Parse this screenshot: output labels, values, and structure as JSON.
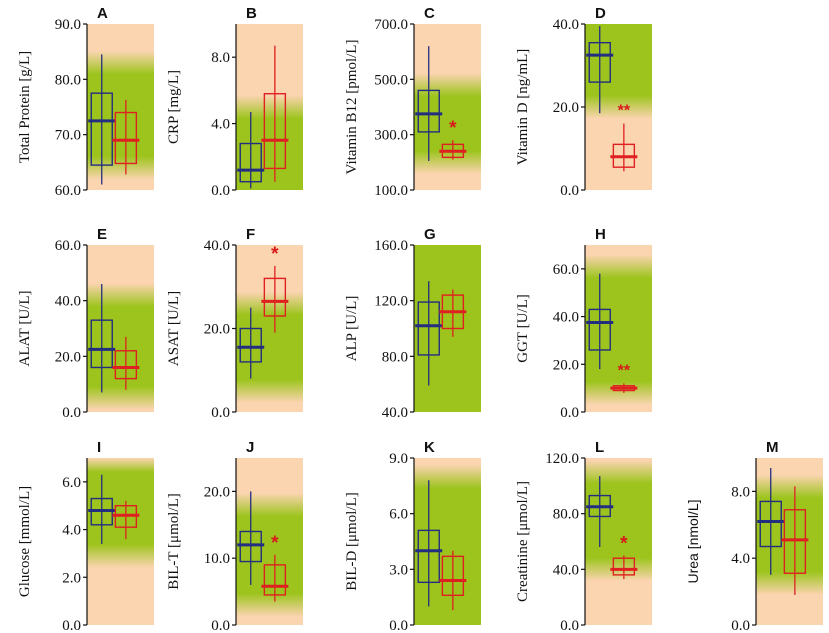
{
  "colors": {
    "green": "#9cc41c",
    "peach": "#fbd4b0",
    "group1": "#242e80",
    "group2": "#df2020",
    "significance": "#d81a1a"
  },
  "chart_data": [
    {
      "type": "box",
      "label": "A",
      "ylabel": "Total Protein [g/L]",
      "ylim": [
        60,
        90
      ],
      "ticks": [
        60,
        70,
        80,
        90
      ],
      "tick_labels": [
        "60.0",
        "70.0",
        "80.0",
        "90.0"
      ],
      "reference_range": [
        64,
        83
      ],
      "label_font": "serif",
      "groups": [
        {
          "min": 61,
          "q1": 64.5,
          "median": 72.5,
          "q3": 77.5,
          "max": 84.5
        },
        {
          "min": 62.8,
          "q1": 64.8,
          "median": 69,
          "q3": 74,
          "max": 76.3
        }
      ],
      "significance": ""
    },
    {
      "type": "box",
      "label": "B",
      "ylabel": "CRP [mg/L]",
      "ylim": [
        0,
        10
      ],
      "ticks": [
        0,
        4,
        8
      ],
      "tick_labels": [
        "0.0",
        "4.0",
        "8.0"
      ],
      "reference_range": [
        0,
        5
      ],
      "label_font": "serif",
      "groups": [
        {
          "min": 0.1,
          "q1": 0.5,
          "median": 1.2,
          "q3": 2.8,
          "max": 4.7
        },
        {
          "min": 0.5,
          "q1": 1.3,
          "median": 3,
          "q3": 5.8,
          "max": 8.7
        }
      ],
      "significance": ""
    },
    {
      "type": "box",
      "label": "C",
      "ylabel": "Vitamin B12 [pmol/L]",
      "ylim": [
        100,
        700
      ],
      "ticks": [
        100,
        300,
        500,
        700
      ],
      "tick_labels": [
        "100.0",
        "300.0",
        "500.0",
        "700.0"
      ],
      "reference_range": [
        200,
        480
      ],
      "label_font": "serif",
      "groups": [
        {
          "min": 205,
          "q1": 310,
          "median": 375,
          "q3": 460,
          "max": 620
        },
        {
          "min": 210,
          "q1": 218,
          "median": 240,
          "q3": 265,
          "max": 280
        }
      ],
      "significance": "*"
    },
    {
      "type": "box",
      "label": "D",
      "ylabel": "Vitamin D [ng/mL]",
      "ylim": [
        0,
        40
      ],
      "ticks": [
        0,
        20,
        40
      ],
      "tick_labels": [
        "0.0",
        "20.0",
        "40.0"
      ],
      "reference_range": [
        20,
        40
      ],
      "label_font": "serif",
      "groups": [
        {
          "min": 18.5,
          "q1": 26,
          "median": 32.5,
          "q3": 35.5,
          "max": 39.5
        },
        {
          "min": 4.5,
          "q1": 5.5,
          "median": 8,
          "q3": 11,
          "max": 16
        }
      ],
      "significance": "**"
    },
    {
      "type": "box",
      "label": "E",
      "ylabel": "ALAT [U/L]",
      "ylim": [
        0,
        60
      ],
      "ticks": [
        0,
        20,
        40,
        60
      ],
      "tick_labels": [
        "0.0",
        "20.0",
        "40.0",
        "60.0"
      ],
      "reference_range": [
        5,
        42
      ],
      "label_font": "serif",
      "groups": [
        {
          "min": 7,
          "q1": 16,
          "median": 22.5,
          "q3": 33,
          "max": 46
        },
        {
          "min": 8,
          "q1": 12,
          "median": 16,
          "q3": 22,
          "max": 27
        }
      ],
      "significance": ""
    },
    {
      "type": "box",
      "label": "F",
      "ylabel": "ASAT [U/L]",
      "ylim": [
        0,
        40
      ],
      "ticks": [
        0,
        20,
        40
      ],
      "tick_labels": [
        "0.0",
        "20.0",
        "40.0"
      ],
      "reference_range": [
        5,
        26
      ],
      "label_font": "serif",
      "groups": [
        {
          "min": 8,
          "q1": 12,
          "median": 15.5,
          "q3": 20,
          "max": 25
        },
        {
          "min": 19,
          "q1": 23,
          "median": 26.5,
          "q3": 32,
          "max": 35
        }
      ],
      "significance": "*"
    },
    {
      "type": "box",
      "label": "G",
      "ylabel": "ALP [U/L]",
      "ylim": [
        40,
        160
      ],
      "ticks": [
        40,
        80,
        120,
        160
      ],
      "tick_labels": [
        "40.0",
        "80.0",
        "120.0",
        "160.0"
      ],
      "reference_range": [
        40,
        160
      ],
      "label_font": "serif",
      "groups": [
        {
          "min": 59,
          "q1": 81,
          "median": 102,
          "q3": 119,
          "max": 134
        },
        {
          "min": 94,
          "q1": 100,
          "median": 112,
          "q3": 124,
          "max": 128
        }
      ],
      "significance": ""
    },
    {
      "type": "box",
      "label": "H",
      "ylabel": "GGT [U/L]",
      "ylim": [
        0,
        70
      ],
      "ticks": [
        0,
        20,
        40,
        60
      ],
      "tick_labels": [
        "0.0",
        "20.0",
        "40.0",
        "60.0"
      ],
      "reference_range": [
        8,
        61
      ],
      "label_font": "serif",
      "groups": [
        {
          "min": 18,
          "q1": 26,
          "median": 37.5,
          "q3": 43,
          "max": 58
        },
        {
          "min": 8,
          "q1": 9,
          "median": 10,
          "q3": 11,
          "max": 12
        }
      ],
      "significance": "**"
    },
    {
      "type": "box",
      "label": "I",
      "ylabel": "Glucose [mmol/L]",
      "ylim": [
        0,
        7
      ],
      "ticks": [
        0,
        2,
        4,
        6
      ],
      "tick_labels": [
        "0.0",
        "2.0",
        "4.0",
        "6.0"
      ],
      "reference_range": [
        2.9,
        6.9
      ],
      "label_font": "serif",
      "groups": [
        {
          "min": 3.4,
          "q1": 4.2,
          "median": 4.8,
          "q3": 5.3,
          "max": 6.3
        },
        {
          "min": 3.6,
          "q1": 4.1,
          "median": 4.6,
          "q3": 5,
          "max": 5.2
        }
      ],
      "significance": ""
    },
    {
      "type": "box",
      "label": "J",
      "ylabel": "BIL-T [μmol/L]",
      "ylim": [
        0,
        25
      ],
      "ticks": [
        0,
        10,
        20
      ],
      "tick_labels": [
        "0.0",
        "10.0",
        "20.0"
      ],
      "reference_range": [
        3,
        18
      ],
      "label_font": "serif",
      "groups": [
        {
          "min": 6,
          "q1": 9.5,
          "median": 12,
          "q3": 14,
          "max": 20
        },
        {
          "min": 3.5,
          "q1": 4.5,
          "median": 5.8,
          "q3": 9,
          "max": 10.5
        }
      ],
      "significance": "*"
    },
    {
      "type": "box",
      "label": "K",
      "ylabel": "BIL-D [μmol/L]",
      "ylim": [
        0,
        9
      ],
      "ticks": [
        0,
        3,
        6,
        9
      ],
      "tick_labels": [
        "0.0",
        "3.0",
        "6.0",
        "9.0"
      ],
      "reference_range": [
        0,
        8
      ],
      "label_font": "serif",
      "groups": [
        {
          "min": 1,
          "q1": 2.3,
          "median": 4,
          "q3": 5.1,
          "max": 7.8
        },
        {
          "min": 0.8,
          "q1": 1.6,
          "median": 2.4,
          "q3": 3.7,
          "max": 4
        }
      ],
      "significance": ""
    },
    {
      "type": "box",
      "label": "L",
      "ylabel": "Creatinine [μmol/L]",
      "ylim": [
        0,
        120
      ],
      "ticks": [
        0,
        40,
        80,
        120
      ],
      "tick_labels": [
        "0.0",
        "40.0",
        "80.0",
        "120.0"
      ],
      "reference_range": [
        40,
        110
      ],
      "label_font": "serif",
      "groups": [
        {
          "min": 56,
          "q1": 78,
          "median": 85,
          "q3": 93,
          "max": 107
        },
        {
          "min": 33,
          "q1": 36,
          "median": 40,
          "q3": 48,
          "max": 50
        }
      ],
      "significance": "*"
    },
    {
      "type": "box",
      "label": "M",
      "ylabel": "Urea [nmol/L]",
      "ylim": [
        0,
        10
      ],
      "ticks": [
        0,
        4,
        8
      ],
      "tick_labels": [
        "0.0",
        "4.0",
        "8.0"
      ],
      "reference_range": [
        2.5,
        8.3
      ],
      "label_font": "sans",
      "groups": [
        {
          "min": 3,
          "q1": 4.7,
          "median": 6.2,
          "q3": 7.4,
          "max": 9.4
        },
        {
          "min": 1.8,
          "q1": 3.1,
          "median": 5.1,
          "q3": 6.9,
          "max": 8.3
        }
      ],
      "significance": ""
    }
  ]
}
